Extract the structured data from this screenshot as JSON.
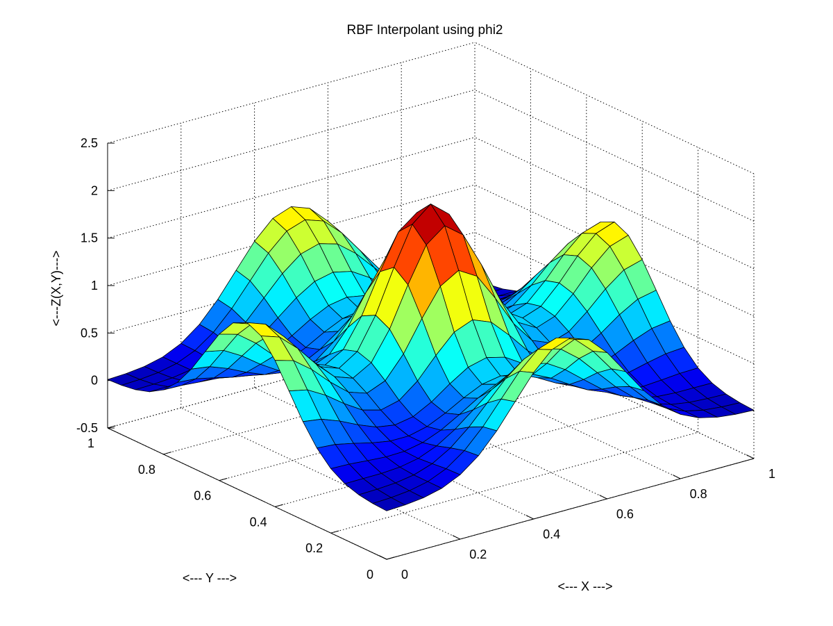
{
  "chart_data": {
    "type": "surface",
    "title": "RBF Interpolant using phi2",
    "xlabel": "<--- X --->",
    "ylabel": "<--- Y --->",
    "zlabel": "<---Z(X,Y)--->",
    "xlim": [
      0,
      1
    ],
    "ylim": [
      0,
      1
    ],
    "zlim": [
      -0.5,
      2.5
    ],
    "xticks": [
      0,
      0.2,
      0.4,
      0.6,
      0.8,
      1
    ],
    "yticks": [
      0,
      0.2,
      0.4,
      0.6,
      0.8,
      1
    ],
    "zticks": [
      -0.5,
      0,
      0.5,
      1,
      1.5,
      2,
      2.5
    ],
    "xticklabels": [
      "0",
      "0.2",
      "0.4",
      "0.6",
      "0.8",
      "1"
    ],
    "yticklabels": [
      "0",
      "0.2",
      "0.4",
      "0.6",
      "0.8",
      "1"
    ],
    "zticklabels": [
      "-0.5",
      "0",
      "0.5",
      "1",
      "1.5",
      "2",
      "2.5"
    ],
    "grid": true,
    "colormap": "jet",
    "color_limits": [
      -0.1,
      2.0
    ],
    "grid_size": [
      21,
      21
    ],
    "surface_model": {
      "description": "Central peak plus four side ridges, sampled on a 21x21 grid",
      "peak": {
        "center": [
          0.5,
          0.5
        ],
        "height": 2.0,
        "width": 0.12
      },
      "ridges": [
        {
          "center": [
            0.0,
            0.5
          ],
          "height": 1.3,
          "width": 0.15
        },
        {
          "center": [
            1.0,
            0.5
          ],
          "height": 1.3,
          "width": 0.15
        },
        {
          "center": [
            0.5,
            0.0
          ],
          "height": 1.3,
          "width": 0.15
        },
        {
          "center": [
            0.5,
            1.0
          ],
          "height": 1.3,
          "width": 0.15
        }
      ]
    }
  }
}
